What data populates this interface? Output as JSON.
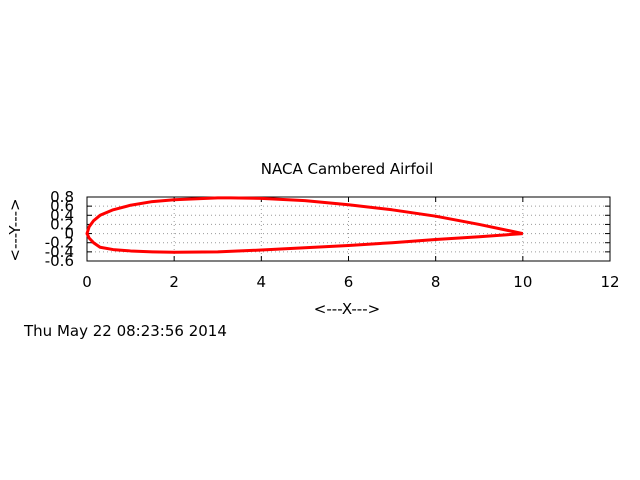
{
  "chart_data": {
    "type": "line",
    "title": "NACA Cambered Airfoil",
    "xlabel": "<---X--->",
    "ylabel": "<---Y--->",
    "xlim": [
      0,
      12
    ],
    "ylim": [
      -0.6,
      0.8
    ],
    "xticks": [
      0,
      2,
      4,
      6,
      8,
      10,
      12
    ],
    "yticks": [
      -0.6,
      -0.4,
      -0.2,
      0,
      0.2,
      0.4,
      0.6,
      0.8
    ],
    "grid": true,
    "legend": "none",
    "series_color": "#ff0000",
    "series": [
      {
        "x": [
          10.0,
          9.0,
          8.0,
          7.0,
          6.0,
          5.0,
          4.0,
          3.3,
          3.0,
          2.0,
          1.5,
          1.0,
          0.6,
          0.3,
          0.15,
          0.05,
          0.0,
          0.05,
          0.15,
          0.3,
          0.6,
          1.0,
          1.5,
          2.0,
          3.0,
          4.0,
          5.0,
          6.0,
          7.0,
          8.0,
          9.0,
          10.0
        ],
        "y": [
          0.0,
          0.2,
          0.38,
          0.52,
          0.63,
          0.72,
          0.77,
          0.78,
          0.78,
          0.74,
          0.7,
          0.62,
          0.52,
          0.4,
          0.28,
          0.15,
          0.0,
          -0.1,
          -0.2,
          -0.3,
          -0.35,
          -0.38,
          -0.4,
          -0.41,
          -0.4,
          -0.36,
          -0.31,
          -0.26,
          -0.2,
          -0.13,
          -0.07,
          0.0
        ]
      }
    ]
  },
  "timestamp": "Thu May 22 08:23:56 2014"
}
